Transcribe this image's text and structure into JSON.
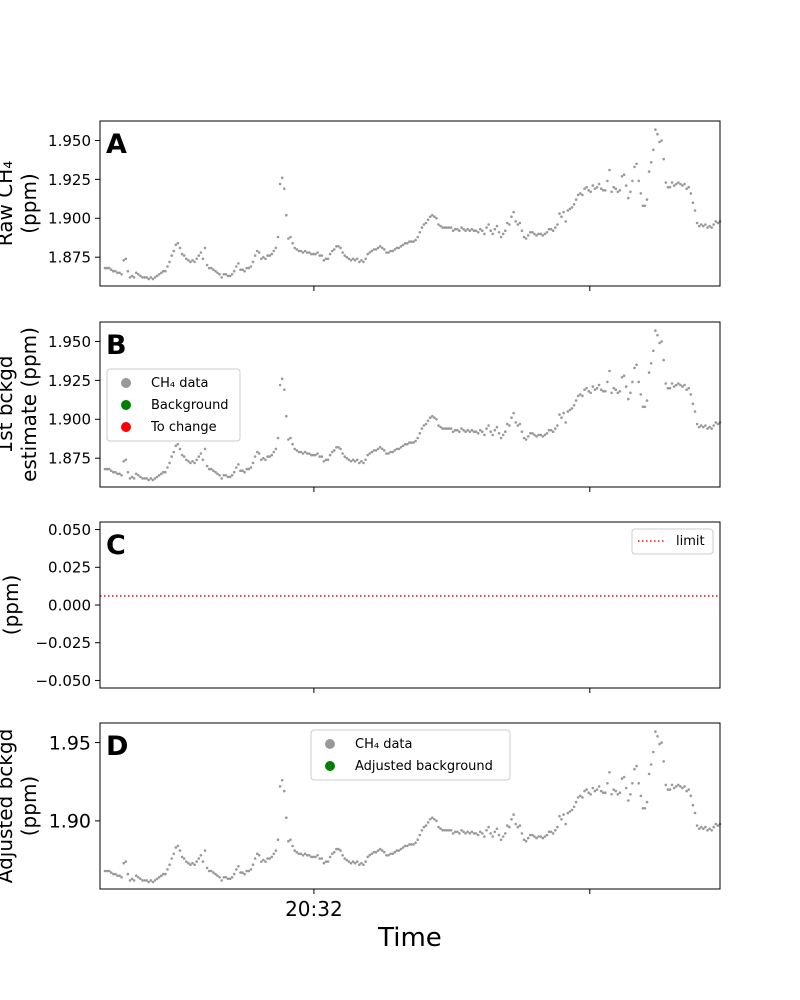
{
  "chart_data": [
    {
      "panel": "A",
      "type": "scatter",
      "ylabel": "Raw CH4 (ppm)",
      "ylabel_lines": [
        "Raw CH₄",
        "(ppm)"
      ],
      "ylim": [
        1.8565,
        1.9625
      ],
      "yticks": [
        "1.875",
        "1.900",
        "1.925",
        "1.950"
      ],
      "ytick_values": [
        1.875,
        1.9,
        1.925,
        1.95
      ],
      "series": [
        {
          "name": "CH4 data",
          "values_ref": "ch4_series"
        }
      ]
    },
    {
      "panel": "B",
      "type": "scatter",
      "ylabel": "1st bckgd estimate (ppm)",
      "ylabel_lines": [
        "1st bckgd",
        "estimate (ppm)"
      ],
      "ylim": [
        1.8565,
        1.9625
      ],
      "yticks": [
        "1.875",
        "1.900",
        "1.925",
        "1.950"
      ],
      "ytick_values": [
        1.875,
        1.9,
        1.925,
        1.95
      ],
      "legend": {
        "position": "center-left",
        "entries": [
          {
            "label": "CH₄ data",
            "color": "#999999"
          },
          {
            "label": "Background",
            "color": "#008000"
          },
          {
            "label": "To change",
            "color": "#ff0000"
          }
        ]
      }
    },
    {
      "panel": "C",
      "type": "line",
      "ylabel": "(ppm)",
      "ylabel_lines": [
        "(ppm)"
      ],
      "ylim": [
        -0.055,
        0.055
      ],
      "yticks": [
        "−0.050",
        "−0.025",
        "0.000",
        "0.025",
        "0.050"
      ],
      "ytick_values": [
        -0.05,
        -0.025,
        0.0,
        0.025,
        0.05
      ],
      "limit_value": 0.006,
      "legend": {
        "position": "top-right",
        "entries": [
          {
            "label": "limit",
            "color": "#ff0000",
            "style": "dotted"
          }
        ]
      }
    },
    {
      "panel": "D",
      "type": "scatter",
      "ylabel": "Adjusted bckgd (ppm)",
      "ylabel_lines": [
        "Adjusted bckgd",
        "(ppm)"
      ],
      "ylim": [
        1.8565,
        1.9625
      ],
      "yticks": [
        "1.90",
        "1.95"
      ],
      "ytick_values": [
        1.9,
        1.95
      ],
      "xlabel": "Time",
      "xticks": [
        "20:32",
        ""
      ],
      "legend": {
        "position": "top-center",
        "entries": [
          {
            "label": "CH₄ data",
            "color": "#999999"
          },
          {
            "label": "Adjusted background",
            "color": "#008000"
          }
        ]
      }
    }
  ],
  "ch4_series": [
    1.868,
    1.868,
    1.868,
    1.867,
    1.866,
    1.866,
    1.865,
    1.865,
    1.864,
    1.873,
    1.874,
    1.866,
    1.862,
    1.863,
    1.862,
    1.865,
    1.864,
    1.863,
    1.862,
    1.862,
    1.862,
    1.861,
    1.862,
    1.861,
    1.862,
    1.863,
    1.864,
    1.865,
    1.866,
    1.866,
    1.869,
    1.872,
    1.876,
    1.879,
    1.883,
    1.884,
    1.881,
    1.877,
    1.876,
    1.874,
    1.873,
    1.872,
    1.873,
    1.872,
    1.874,
    1.876,
    1.878,
    1.874,
    1.881,
    1.87,
    1.868,
    1.868,
    1.867,
    1.866,
    1.865,
    1.864,
    1.862,
    1.864,
    1.864,
    1.863,
    1.863,
    1.864,
    1.866,
    1.869,
    1.871,
    1.867,
    1.867,
    1.866,
    1.868,
    1.868,
    1.869,
    1.872,
    1.876,
    1.879,
    1.878,
    1.874,
    1.875,
    1.874,
    1.876,
    1.876,
    1.877,
    1.879,
    1.881,
    1.888,
    1.922,
    1.926,
    1.919,
    1.902,
    1.887,
    1.888,
    1.884,
    1.881,
    1.88,
    1.879,
    1.879,
    1.878,
    1.879,
    1.878,
    1.878,
    1.877,
    1.877,
    1.877,
    1.878,
    1.876,
    1.876,
    1.873,
    1.874,
    1.874,
    1.877,
    1.879,
    1.88,
    1.882,
    1.882,
    1.881,
    1.878,
    1.876,
    1.875,
    1.874,
    1.873,
    1.874,
    1.873,
    1.874,
    1.872,
    1.873,
    1.872,
    1.874,
    1.877,
    1.878,
    1.879,
    1.88,
    1.88,
    1.881,
    1.882,
    1.881,
    1.88,
    1.878,
    1.878,
    1.879,
    1.879,
    1.88,
    1.881,
    1.881,
    1.882,
    1.883,
    1.884,
    1.884,
    1.885,
    1.885,
    1.885,
    1.886,
    1.888,
    1.891,
    1.894,
    1.896,
    1.897,
    1.899,
    1.901,
    1.902,
    1.901,
    1.9,
    1.896,
    1.895,
    1.894,
    1.894,
    1.894,
    1.894,
    1.894,
    1.892,
    1.893,
    1.893,
    1.892,
    1.894,
    1.893,
    1.892,
    1.893,
    1.892,
    1.893,
    1.892,
    1.892,
    1.891,
    1.893,
    1.892,
    1.89,
    1.894,
    1.896,
    1.892,
    1.89,
    1.893,
    1.895,
    1.891,
    1.888,
    1.89,
    1.892,
    1.897,
    1.896,
    1.901,
    1.904,
    1.898,
    1.896,
    1.897,
    1.892,
    1.888,
    1.887,
    1.889,
    1.891,
    1.891,
    1.89,
    1.889,
    1.89,
    1.89,
    1.889,
    1.89,
    1.891,
    1.893,
    1.893,
    1.892,
    1.894,
    1.896,
    1.903,
    1.901,
    1.904,
    1.898,
    1.905,
    1.906,
    1.907,
    1.909,
    1.912,
    1.915,
    1.916,
    1.915,
    1.919,
    1.92,
    1.918,
    1.917,
    1.921,
    1.919,
    1.92,
    1.922,
    1.919,
    1.918,
    1.918,
    1.924,
    1.931,
    1.917,
    1.92,
    1.919,
    1.917,
    1.918,
    1.927,
    1.928,
    1.921,
    1.913,
    1.917,
    1.924,
    1.933,
    1.935,
    1.924,
    1.916,
    1.908,
    1.908,
    1.912,
    1.93,
    1.936,
    1.944,
    1.957,
    1.954,
    1.949,
    1.95,
    1.938,
    1.923,
    1.92,
    1.92,
    1.923,
    1.921,
    1.922,
    1.923,
    1.922,
    1.921,
    1.922,
    1.919,
    1.92,
    1.916,
    1.91,
    1.905,
    1.897,
    1.895,
    1.896,
    1.895,
    1.896,
    1.894,
    1.895,
    1.894,
    1.896,
    1.898,
    1.897,
    1.898
  ],
  "ch4_x_start": 0.0,
  "ch4_x_end": 1.0,
  "xtick_positions": [
    0.345,
    0.79
  ]
}
